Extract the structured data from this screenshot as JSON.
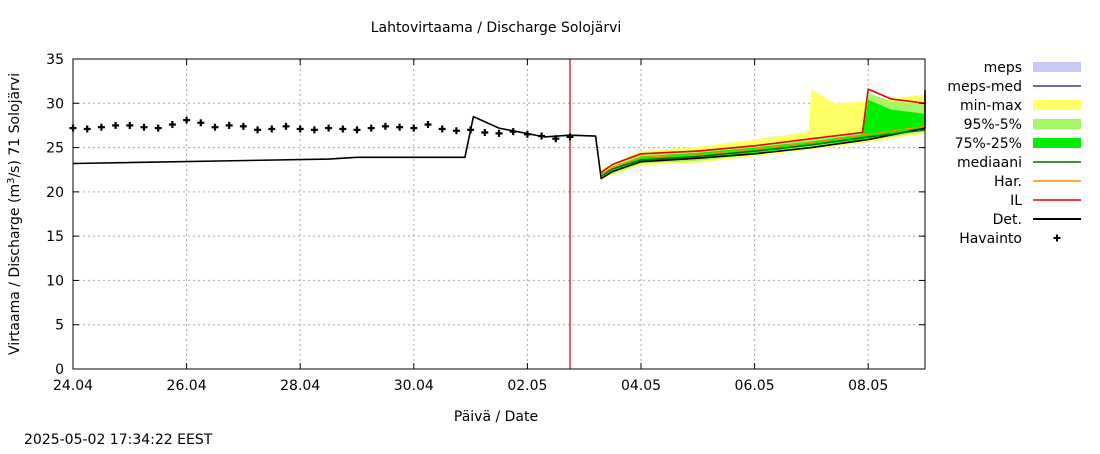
{
  "chart_data": {
    "type": "line",
    "title": "Lahtovirtaama / Discharge  Solojärvi",
    "xlabel": "Päivä / Date",
    "ylabel_prefix": "Virtaama / Discharge (m",
    "ylabel_sup": "3",
    "ylabel_suffix": "/s)  71  Solojärvi",
    "xlim": [
      0,
      15
    ],
    "ylim": [
      0,
      35
    ],
    "x_unit": "days since 24.04",
    "x_ticks": [
      {
        "x": 0,
        "label": "24.04"
      },
      {
        "x": 2,
        "label": "26.04"
      },
      {
        "x": 4,
        "label": "28.04"
      },
      {
        "x": 6,
        "label": "30.04"
      },
      {
        "x": 8,
        "label": "02.05"
      },
      {
        "x": 10,
        "label": "04.05"
      },
      {
        "x": 12,
        "label": "06.05"
      },
      {
        "x": 14,
        "label": "08.05"
      }
    ],
    "y_ticks": [
      0,
      5,
      10,
      15,
      20,
      25,
      30,
      35
    ],
    "grid": true,
    "legend_position": "right",
    "legend": [
      {
        "label": "meps",
        "kind": "box",
        "color": "#c8c8f5"
      },
      {
        "label": "meps-med",
        "kind": "line",
        "color": "#3a3aa8"
      },
      {
        "label": "min-max",
        "kind": "box",
        "color": "#ffff66"
      },
      {
        "label": "95%-5%",
        "kind": "box",
        "color": "#a6f566"
      },
      {
        "label": "75%-25%",
        "kind": "box",
        "color": "#00ee00"
      },
      {
        "label": "mediaani",
        "kind": "line",
        "color": "#007000"
      },
      {
        "label": "Har.",
        "kind": "line",
        "color": "#ff8c00"
      },
      {
        "label": "IL",
        "kind": "line",
        "color": "#ee0000"
      },
      {
        "label": "Det.",
        "kind": "line",
        "color": "#000000"
      },
      {
        "label": "Havainto",
        "kind": "plus",
        "color": "#000000"
      }
    ],
    "forecast_start_x": 8.75,
    "timestamp": "2025-05-02 17:34:22 EEST",
    "series": [
      {
        "name": "Havainto",
        "style": "plus",
        "color": "#000000",
        "points": [
          [
            0,
            27.2
          ],
          [
            0.25,
            27.1
          ],
          [
            0.5,
            27.3
          ],
          [
            0.75,
            27.5
          ],
          [
            1,
            27.5
          ],
          [
            1.25,
            27.3
          ],
          [
            1.5,
            27.2
          ],
          [
            1.75,
            27.6
          ],
          [
            2,
            28.1
          ],
          [
            2.25,
            27.8
          ],
          [
            2.5,
            27.3
          ],
          [
            2.75,
            27.5
          ],
          [
            3,
            27.4
          ],
          [
            3.25,
            27.0
          ],
          [
            3.5,
            27.1
          ],
          [
            3.75,
            27.4
          ],
          [
            4,
            27.1
          ],
          [
            4.25,
            27.0
          ],
          [
            4.5,
            27.2
          ],
          [
            4.75,
            27.1
          ],
          [
            5,
            27.0
          ],
          [
            5.25,
            27.2
          ],
          [
            5.5,
            27.4
          ],
          [
            5.75,
            27.3
          ],
          [
            6,
            27.2
          ],
          [
            6.25,
            27.6
          ],
          [
            6.5,
            27.1
          ],
          [
            6.75,
            26.9
          ],
          [
            7,
            27.0
          ],
          [
            7.25,
            26.7
          ],
          [
            7.5,
            26.6
          ],
          [
            7.75,
            26.8
          ],
          [
            8,
            26.5
          ],
          [
            8.25,
            26.3
          ],
          [
            8.5,
            26.0
          ],
          [
            8.75,
            26.2
          ]
        ]
      },
      {
        "name": "Det.",
        "style": "line",
        "color": "#000000",
        "width": 1.6,
        "points": [
          [
            0,
            23.2
          ],
          [
            4.5,
            23.7
          ],
          [
            5,
            23.9
          ],
          [
            6.9,
            23.9
          ],
          [
            7.05,
            28.5
          ],
          [
            7.5,
            27.2
          ],
          [
            8.3,
            26.2
          ],
          [
            8.75,
            26.4
          ],
          [
            9.2,
            26.3
          ],
          [
            9.3,
            21.5
          ],
          [
            9.5,
            22.3
          ],
          [
            10,
            23.4
          ],
          [
            11,
            23.8
          ],
          [
            12,
            24.3
          ],
          [
            13,
            25.0
          ],
          [
            14,
            25.9
          ],
          [
            15,
            27.2
          ],
          [
            15,
            31.5
          ]
        ]
      },
      {
        "name": "IL",
        "style": "line",
        "color": "#ee0000",
        "width": 1.6,
        "points": [
          [
            9.3,
            22.2
          ],
          [
            9.5,
            23.1
          ],
          [
            10,
            24.3
          ],
          [
            11,
            24.6
          ],
          [
            12,
            25.2
          ],
          [
            13,
            26.0
          ],
          [
            13.9,
            26.7
          ],
          [
            14,
            31.6
          ],
          [
            14.4,
            30.5
          ],
          [
            15,
            30.0
          ],
          [
            15,
            31.0
          ]
        ]
      },
      {
        "name": "mediaani",
        "style": "line",
        "color": "#007000",
        "width": 1.4,
        "points": [
          [
            9.3,
            21.8
          ],
          [
            9.5,
            22.6
          ],
          [
            10,
            23.6
          ],
          [
            11,
            24.0
          ],
          [
            12,
            24.6
          ],
          [
            13,
            25.3
          ],
          [
            14,
            26.2
          ],
          [
            15,
            27.0
          ]
        ]
      },
      {
        "name": "Har.",
        "style": "line",
        "color": "#ff8c00",
        "width": 1.2,
        "points": [
          [
            9.3,
            21.9
          ],
          [
            9.5,
            22.8
          ],
          [
            10,
            23.9
          ],
          [
            11,
            24.2
          ],
          [
            12,
            24.8
          ],
          [
            13,
            25.6
          ],
          [
            14,
            26.5
          ],
          [
            15,
            27.4
          ]
        ]
      }
    ],
    "bands": [
      {
        "name": "min-max",
        "color": "#ffff66",
        "upper": [
          [
            9.3,
            22.5
          ],
          [
            10,
            24.6
          ],
          [
            11,
            25.1
          ],
          [
            12,
            25.9
          ],
          [
            12.95,
            26.8
          ],
          [
            13.0,
            31.6
          ],
          [
            13.4,
            30.0
          ],
          [
            14,
            30.2
          ],
          [
            14.2,
            30.4
          ],
          [
            15,
            31.0
          ]
        ],
        "lower": [
          [
            15,
            26.6
          ],
          [
            14,
            25.6
          ],
          [
            13,
            24.8
          ],
          [
            12,
            24.0
          ],
          [
            11,
            23.3
          ],
          [
            10,
            23.0
          ],
          [
            9.3,
            21.5
          ]
        ]
      },
      {
        "name": "95%-5%",
        "color": "#a6f566",
        "upper": [
          [
            9.3,
            22.3
          ],
          [
            10,
            24.3
          ],
          [
            11,
            24.7
          ],
          [
            12,
            25.3
          ],
          [
            13,
            26.0
          ],
          [
            13.9,
            26.8
          ],
          [
            14,
            31.2
          ],
          [
            14.4,
            30.2
          ],
          [
            15,
            29.9
          ]
        ],
        "lower": [
          [
            15,
            26.8
          ],
          [
            14,
            25.8
          ],
          [
            13,
            25.0
          ],
          [
            12,
            24.2
          ],
          [
            11,
            23.5
          ],
          [
            10,
            23.2
          ],
          [
            9.3,
            21.6
          ]
        ]
      },
      {
        "name": "75%-25%",
        "color": "#00ee00",
        "upper": [
          [
            9.3,
            22.1
          ],
          [
            10,
            24.0
          ],
          [
            11,
            24.4
          ],
          [
            12,
            25.0
          ],
          [
            13,
            25.7
          ],
          [
            13.9,
            26.5
          ],
          [
            14,
            30.4
          ],
          [
            14.4,
            29.3
          ],
          [
            15,
            28.8
          ]
        ],
        "lower": [
          [
            15,
            27.1
          ],
          [
            14,
            26.0
          ],
          [
            13,
            25.2
          ],
          [
            12,
            24.4
          ],
          [
            11,
            23.7
          ],
          [
            10,
            23.4
          ],
          [
            9.3,
            21.7
          ]
        ]
      }
    ]
  }
}
